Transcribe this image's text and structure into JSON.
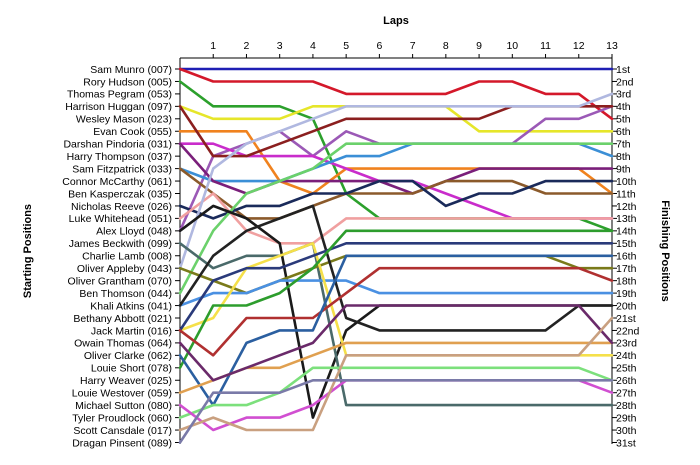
{
  "chart_data": {
    "type": "line",
    "title": "",
    "xlabel": "Laps",
    "ylabel_left": "Starting Positions",
    "ylabel_right": "Finishing Positions",
    "x": [
      1,
      2,
      3,
      4,
      5,
      6,
      7,
      8,
      9,
      10,
      11,
      12,
      13
    ],
    "position_range": [
      1,
      31
    ],
    "inverted_y": true,
    "grid": false,
    "drivers": [
      "Sam Munro (007)",
      "Rory Hudson (005)",
      "Thomas Pegram (053)",
      "Harrison Huggan (097)",
      "Wesley Mason (023)",
      "Evan Cook (055)",
      "Darshan Pindoria (031)",
      "Harry Thompson (037)",
      "Sam Fitzpatrick (033)",
      "Connor McCarthy (061)",
      "Ben Kasperczak (035)",
      "Nicholas Reeve (026)",
      "Luke Whitehead (051)",
      "Alex Lloyd (048)",
      "James Beckwith (099)",
      "Charlie Lamb (008)",
      "Oliver Appleby (043)",
      "Oliver Grantham (070)",
      "Ben Thomson (044)",
      "Khali Atkins (041)",
      "Bethany Abbott (021)",
      "Jack Martin (016)",
      "Owain Thomas (064)",
      "Oliver Clarke (062)",
      "Louie Short (078)",
      "Harry Weaver (025)",
      "Louie Westover (059)",
      "Michael Sutton (080)",
      "Tyler Proudlock (060)",
      "Scott Cansdale (017)",
      "Dragan Pinsent (089)"
    ],
    "finishing_labels": [
      "1st",
      "2nd",
      "3rd",
      "4th",
      "5th",
      "6th",
      "7th",
      "8th",
      "9th",
      "10th",
      "11th",
      "12th",
      "13th",
      "14th",
      "15th",
      "16th",
      "17th",
      "18th",
      "19th",
      "20th",
      "21st",
      "22nd",
      "23rd",
      "24th",
      "25th",
      "26th",
      "27th",
      "28th",
      "29th",
      "30th",
      "31st"
    ],
    "series": [
      {
        "color": "#1f1fb4",
        "positions": [
          1,
          1,
          1,
          1,
          1,
          1,
          1,
          1,
          1,
          1,
          1,
          1,
          1,
          1
        ]
      },
      {
        "color": "#d4182a",
        "positions": [
          1,
          2,
          2,
          2,
          2,
          3,
          3,
          3,
          3,
          2,
          2,
          3,
          3,
          5
        ]
      },
      {
        "color": "#2ca02c",
        "positions": [
          2,
          4,
          4,
          4,
          5,
          11,
          13,
          13,
          13,
          13,
          13,
          13,
          13,
          14
        ]
      },
      {
        "color": "#e6e62a",
        "positions": [
          4,
          5,
          5,
          5,
          4,
          4,
          4,
          4,
          4,
          6,
          6,
          6,
          6,
          6
        ]
      },
      {
        "color": "#9b59b6",
        "positions": [
          14,
          8,
          7,
          6,
          8,
          6,
          7,
          7,
          7,
          7,
          7,
          5,
          5,
          4
        ]
      },
      {
        "color": "#f0821e",
        "positions": [
          6,
          6,
          6,
          10,
          11,
          9,
          9,
          9,
          9,
          9,
          9,
          9,
          9,
          11
        ]
      },
      {
        "color": "#c92ccb",
        "positions": [
          7,
          7,
          8,
          8,
          8,
          9,
          10,
          10,
          11,
          12,
          13,
          13,
          13,
          13
        ]
      },
      {
        "color": "#8b1f1f",
        "positions": [
          4,
          8,
          8,
          7,
          6,
          5,
          5,
          5,
          5,
          5,
          4,
          4,
          4,
          4
        ]
      },
      {
        "color": "#3b8fd6",
        "positions": [
          9,
          10,
          10,
          10,
          9,
          8,
          8,
          7,
          7,
          7,
          7,
          7,
          7,
          8
        ]
      },
      {
        "color": "#7a1f7a",
        "positions": [
          7,
          10,
          11,
          10,
          10,
          10,
          10,
          11,
          10,
          9,
          9,
          9,
          9,
          9
        ]
      },
      {
        "color": "#8b5a2b",
        "positions": [
          9,
          11,
          13,
          13,
          12,
          11,
          11,
          11,
          10,
          10,
          10,
          11,
          11,
          11
        ]
      },
      {
        "color": "#1a2a5a",
        "positions": [
          12,
          13,
          12,
          12,
          11,
          11,
          10,
          10,
          12,
          11,
          11,
          10,
          10,
          10
        ]
      },
      {
        "color": "#f0a0a0",
        "positions": [
          13,
          11,
          14,
          15,
          15,
          13,
          13,
          13,
          13,
          13,
          13,
          13,
          13,
          13
        ]
      },
      {
        "color": "#6bd16b",
        "positions": [
          19,
          14,
          11,
          10,
          9,
          7,
          7,
          7,
          7,
          7,
          7,
          7,
          7,
          7
        ]
      },
      {
        "color": "#b0b8e0",
        "positions": [
          17,
          9,
          7,
          6,
          5,
          4,
          4,
          4,
          4,
          4,
          4,
          4,
          4,
          3
        ]
      },
      {
        "color": "#1a1a1a",
        "positions": [
          14,
          12,
          13,
          15,
          29,
          22,
          20,
          20,
          20,
          20,
          20,
          20,
          20,
          20
        ]
      },
      {
        "color": "#4a6a6a",
        "positions": [
          15,
          17,
          16,
          16,
          15,
          28,
          28,
          28,
          28,
          28,
          28,
          28,
          28,
          28
        ]
      },
      {
        "color": "#7a7a1a",
        "positions": [
          17,
          18,
          19,
          18,
          17,
          16,
          16,
          16,
          16,
          16,
          16,
          16,
          17,
          17
        ]
      },
      {
        "color": "#4a90e2",
        "positions": [
          20,
          19,
          19,
          18,
          18,
          18,
          19,
          19,
          19,
          19,
          19,
          19,
          19,
          19
        ]
      },
      {
        "color": "#222222",
        "positions": [
          20,
          16,
          14,
          13,
          12,
          21,
          22,
          22,
          22,
          22,
          22,
          22,
          20,
          20
        ]
      },
      {
        "color": "#f5e04a",
        "positions": [
          22,
          21,
          17,
          16,
          15,
          24,
          24,
          24,
          24,
          24,
          24,
          24,
          24,
          24
        ]
      },
      {
        "color": "#2a3a7a",
        "positions": [
          22,
          18,
          17,
          17,
          16,
          15,
          15,
          15,
          15,
          15,
          15,
          15,
          15,
          15
        ]
      },
      {
        "color": "#2d9d2d",
        "positions": [
          25,
          20,
          20,
          19,
          17,
          14,
          14,
          14,
          14,
          14,
          14,
          14,
          14,
          14
        ]
      },
      {
        "color": "#b03030",
        "positions": [
          22,
          24,
          21,
          21,
          21,
          19,
          17,
          17,
          17,
          17,
          17,
          17,
          17,
          18
        ]
      },
      {
        "color": "#2b5fa0",
        "positions": [
          24,
          28,
          23,
          22,
          22,
          16,
          16,
          16,
          16,
          16,
          16,
          16,
          16,
          16
        ]
      },
      {
        "color": "#e0a050",
        "positions": [
          27,
          26,
          25,
          25,
          24,
          23,
          23,
          23,
          23,
          23,
          23,
          23,
          23,
          23
        ]
      },
      {
        "color": "#6a2a6a",
        "positions": [
          23,
          26,
          25,
          24,
          23,
          20,
          20,
          20,
          20,
          20,
          20,
          20,
          20,
          23
        ]
      },
      {
        "color": "#7ce07c",
        "positions": [
          29,
          28,
          28,
          27,
          25,
          25,
          25,
          25,
          25,
          25,
          25,
          25,
          25,
          26
        ]
      },
      {
        "color": "#d14fd1",
        "positions": [
          28,
          30,
          29,
          29,
          28,
          26,
          26,
          26,
          26,
          26,
          26,
          26,
          26,
          27
        ]
      },
      {
        "color": "#c9a080",
        "positions": [
          30,
          29,
          30,
          30,
          30,
          24,
          24,
          24,
          24,
          24,
          24,
          24,
          24,
          21
        ]
      },
      {
        "color": "#7a7aa8",
        "positions": [
          31,
          27,
          27,
          27,
          26,
          26,
          26,
          26,
          26,
          26,
          26,
          26,
          26,
          26
        ]
      }
    ]
  }
}
